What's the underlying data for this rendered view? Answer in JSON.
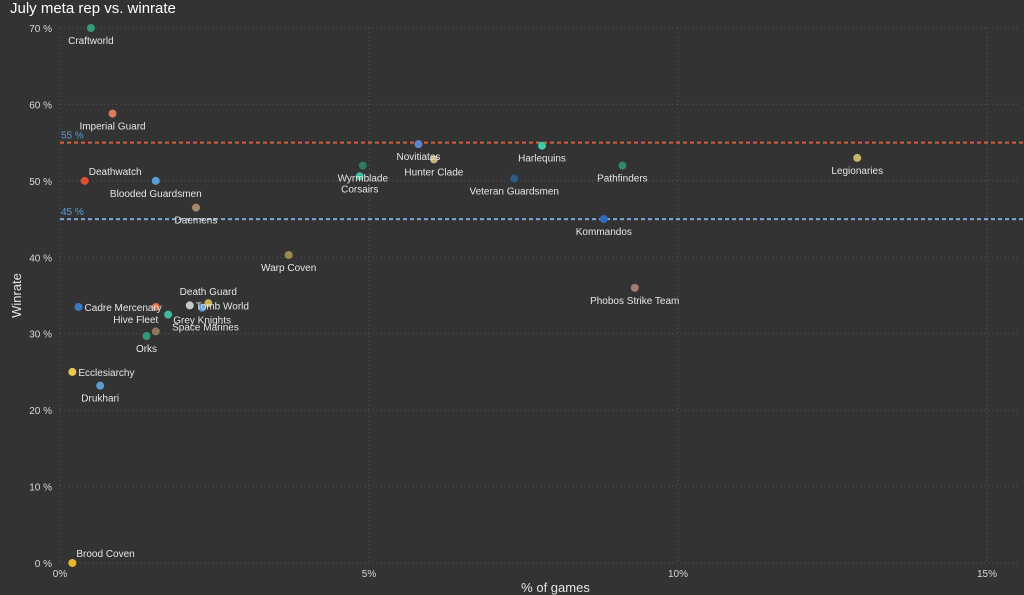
{
  "chart_data": {
    "type": "scatter",
    "title": "July meta rep vs. winrate",
    "xlabel": "% of games",
    "ylabel": "Winrate",
    "xlim": [
      0,
      15.5
    ],
    "ylim": [
      0,
      70
    ],
    "x_ticks": [
      0,
      5,
      10,
      15
    ],
    "x_tick_labels": [
      "0%",
      "5%",
      "10%",
      "15%"
    ],
    "y_ticks": [
      0,
      10,
      20,
      30,
      40,
      50,
      60,
      70
    ],
    "y_tick_labels": [
      "0 %",
      "10 %",
      "20 %",
      "30 %",
      "40 %",
      "50 %",
      "60 %",
      "70 %"
    ],
    "grid": true,
    "reference_lines": [
      {
        "y": 55,
        "label": "55 %",
        "color": "#d4613f",
        "text_color": "#5b9bd5"
      },
      {
        "y": 45,
        "label": "45 %",
        "color": "#7fa9d6",
        "text_color": "#5b9bd5"
      }
    ],
    "points": [
      {
        "name": "Craftworld",
        "x": 0.5,
        "y": 70,
        "color": "#2e9c7a",
        "label_pos": "below"
      },
      {
        "name": "Imperial Guard",
        "x": 0.85,
        "y": 58.8,
        "color": "#e07a5a",
        "label_pos": "below"
      },
      {
        "name": "Deathwatch",
        "x": 0.4,
        "y": 50,
        "color": "#e0502e",
        "label_pos": "above-right"
      },
      {
        "name": "Blooded Guardsmen",
        "x": 1.55,
        "y": 50,
        "color": "#5b9bd5",
        "label_pos": "below"
      },
      {
        "name": "Daemens",
        "x": 2.2,
        "y": 46.5,
        "color": "#a88a6a",
        "label_pos": "below"
      },
      {
        "name": "Warp Coven",
        "x": 3.7,
        "y": 40.3,
        "color": "#9c8a4a",
        "label_pos": "below"
      },
      {
        "name": "Wyrmblade",
        "x": 4.9,
        "y": 52,
        "color": "#2e7d5e",
        "label_pos": "below"
      },
      {
        "name": "Corsairs",
        "x": 4.85,
        "y": 50.6,
        "color": "#3fb8a0",
        "label_pos": "below"
      },
      {
        "name": "Novitiates",
        "x": 5.8,
        "y": 54.8,
        "color": "#5b87d0",
        "label_pos": "below"
      },
      {
        "name": "Hunter Clade",
        "x": 6.05,
        "y": 52.8,
        "color": "#c8b078",
        "label_pos": "below"
      },
      {
        "name": "Harlequins",
        "x": 7.8,
        "y": 54.6,
        "color": "#3fc8a8",
        "label_pos": "below"
      },
      {
        "name": "Veteran Guardsmen",
        "x": 7.35,
        "y": 50.3,
        "color": "#2e5c8a",
        "label_pos": "below"
      },
      {
        "name": "Pathfinders",
        "x": 9.1,
        "y": 52,
        "color": "#2e8a6a",
        "label_pos": "below"
      },
      {
        "name": "Kommandos",
        "x": 8.8,
        "y": 45,
        "color": "#2e6cc0",
        "label_pos": "below"
      },
      {
        "name": "Legionaries",
        "x": 12.9,
        "y": 53,
        "color": "#c8b468",
        "label_pos": "below"
      },
      {
        "name": "Phobos Strike Team",
        "x": 9.3,
        "y": 36,
        "color": "#a87a6a",
        "label_pos": "below"
      },
      {
        "name": "Death Guard",
        "x": 2.4,
        "y": 34,
        "color": "#c8b050",
        "label_pos": "above"
      },
      {
        "name": "Tomb World",
        "x": 2.1,
        "y": 33.7,
        "color": "#c8c8c8",
        "label_pos": "right"
      },
      {
        "name": "Cadre Mercenary",
        "x": 0.3,
        "y": 33.5,
        "color": "#3a7ac8",
        "label_pos": "right"
      },
      {
        "name": "Grey Knights",
        "x": 2.3,
        "y": 33.4,
        "color": "#5b9bd5",
        "label_pos": "below"
      },
      {
        "name": "Hive Fleet",
        "x": 1.55,
        "y": 33.5,
        "color": "#e0704a",
        "label_pos": "below-left"
      },
      {
        "name": "Space Marines",
        "x": 1.75,
        "y": 32.5,
        "color": "#3fb8a0",
        "label_pos": "below-right"
      },
      {
        "name": "Orks",
        "x": 1.4,
        "y": 29.7,
        "color": "#2e9c7a",
        "label_pos": "below"
      },
      {
        "name": "Space Marines shadow",
        "x": 1.55,
        "y": 30.3,
        "color": "#8a7a5a",
        "label_pos": "none"
      },
      {
        "name": "Ecclesiarchy",
        "x": 0.2,
        "y": 25,
        "color": "#e8c84a",
        "label_pos": "right"
      },
      {
        "name": "Drukhari",
        "x": 0.65,
        "y": 23.2,
        "color": "#5b9bd5",
        "label_pos": "below"
      },
      {
        "name": "Brood Coven",
        "x": 0.2,
        "y": 0,
        "color": "#e8b82a",
        "label_pos": "above-right"
      }
    ]
  }
}
